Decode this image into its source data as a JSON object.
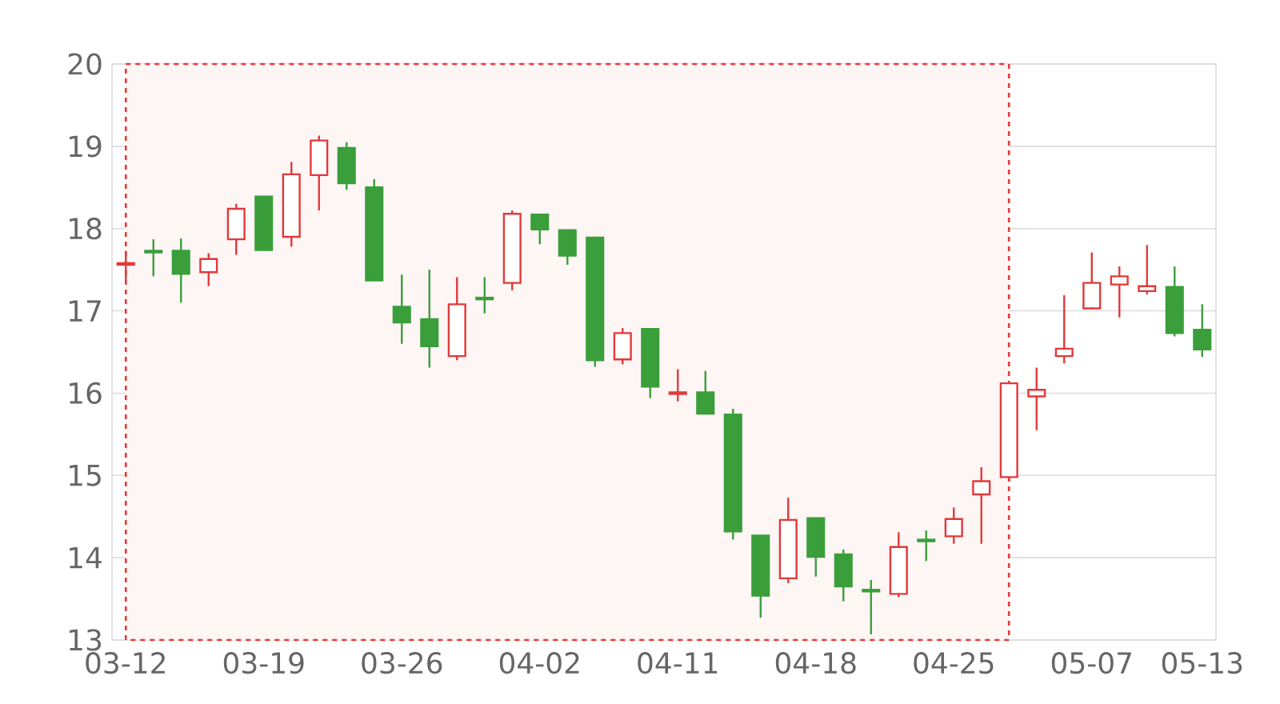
{
  "chart_data": {
    "type": "candlestick",
    "categories": [
      "03-12",
      null,
      null,
      null,
      null,
      "03-19",
      null,
      null,
      null,
      null,
      "03-26",
      null,
      null,
      null,
      null,
      "04-02",
      null,
      null,
      null,
      null,
      "04-11",
      null,
      null,
      null,
      null,
      "04-18",
      null,
      null,
      null,
      null,
      "04-25",
      null,
      null,
      null,
      null,
      "05-07",
      null,
      null,
      null,
      "05-13"
    ],
    "ohlc": [
      [
        17.56,
        17.73,
        17.34,
        17.58
      ],
      [
        17.73,
        17.87,
        17.42,
        17.71
      ],
      [
        17.73,
        17.88,
        17.1,
        17.45
      ],
      [
        17.47,
        17.7,
        17.3,
        17.63
      ],
      [
        17.87,
        18.3,
        17.68,
        18.24
      ],
      [
        18.39,
        18.39,
        17.74,
        17.74
      ],
      [
        17.9,
        18.81,
        17.78,
        18.66
      ],
      [
        18.65,
        19.13,
        18.22,
        19.07
      ],
      [
        18.98,
        19.05,
        18.47,
        18.55
      ],
      [
        18.5,
        18.6,
        17.37,
        17.37
      ],
      [
        17.05,
        17.44,
        16.6,
        16.86
      ],
      [
        16.9,
        17.5,
        16.31,
        16.57
      ],
      [
        16.45,
        17.41,
        16.4,
        17.08
      ],
      [
        17.16,
        17.41,
        16.97,
        17.14
      ],
      [
        17.34,
        18.22,
        17.25,
        18.18
      ],
      [
        18.17,
        18.17,
        17.81,
        17.99
      ],
      [
        17.98,
        17.98,
        17.56,
        17.67
      ],
      [
        17.89,
        17.89,
        16.32,
        16.4
      ],
      [
        16.41,
        16.79,
        16.35,
        16.73
      ],
      [
        16.78,
        16.78,
        15.94,
        16.08
      ],
      [
        15.99,
        16.29,
        15.9,
        16.01
      ],
      [
        16.01,
        16.27,
        15.74,
        15.75
      ],
      [
        15.74,
        15.81,
        14.22,
        14.32
      ],
      [
        14.27,
        14.27,
        13.27,
        13.54
      ],
      [
        13.75,
        14.73,
        13.69,
        14.46
      ],
      [
        14.48,
        14.48,
        13.77,
        14.01
      ],
      [
        14.04,
        14.1,
        13.47,
        13.65
      ],
      [
        13.61,
        13.73,
        13.07,
        13.59
      ],
      [
        13.56,
        14.31,
        13.52,
        14.13
      ],
      [
        14.22,
        14.33,
        13.96,
        14.2
      ],
      [
        14.26,
        14.61,
        14.17,
        14.47
      ],
      [
        14.77,
        15.1,
        14.17,
        14.93
      ],
      [
        14.98,
        16.12,
        14.93,
        16.12
      ],
      [
        15.96,
        16.31,
        15.55,
        16.04
      ],
      [
        16.45,
        17.19,
        16.36,
        16.54
      ],
      [
        17.03,
        17.71,
        17.02,
        17.34
      ],
      [
        17.32,
        17.54,
        16.92,
        17.42
      ],
      [
        17.24,
        17.8,
        17.2,
        17.3
      ],
      [
        17.29,
        17.54,
        16.69,
        16.73
      ],
      [
        16.77,
        17.08,
        16.44,
        16.53
      ]
    ],
    "colors": [
      "#e03a3a",
      "#3a9e3a",
      "#3a9e3a",
      "#e03a3a",
      "#e03a3a",
      "#3a9e3a",
      "#e03a3a",
      "#e03a3a",
      "#3a9e3a",
      "#3a9e3a",
      "#3a9e3a",
      "#3a9e3a",
      "#e03a3a",
      "#3a9e3a",
      "#e03a3a",
      "#3a9e3a",
      "#3a9e3a",
      "#3a9e3a",
      "#e03a3a",
      "#3a9e3a",
      "#e03a3a",
      "#3a9e3a",
      "#3a9e3a",
      "#3a9e3a",
      "#e03a3a",
      "#3a9e3a",
      "#3a9e3a",
      "#3a9e3a",
      "#e03a3a",
      "#3a9e3a",
      "#e03a3a",
      "#e03a3a",
      "#e03a3a",
      "#e03a3a",
      "#e03a3a",
      "#e03a3a",
      "#e03a3a",
      "#e03a3a",
      "#3a9e3a",
      "#3a9e3a"
    ],
    "ylim": [
      13,
      20
    ],
    "yticks": [
      13,
      14,
      15,
      16,
      17,
      18,
      19,
      20
    ],
    "grid": "y"
  }
}
